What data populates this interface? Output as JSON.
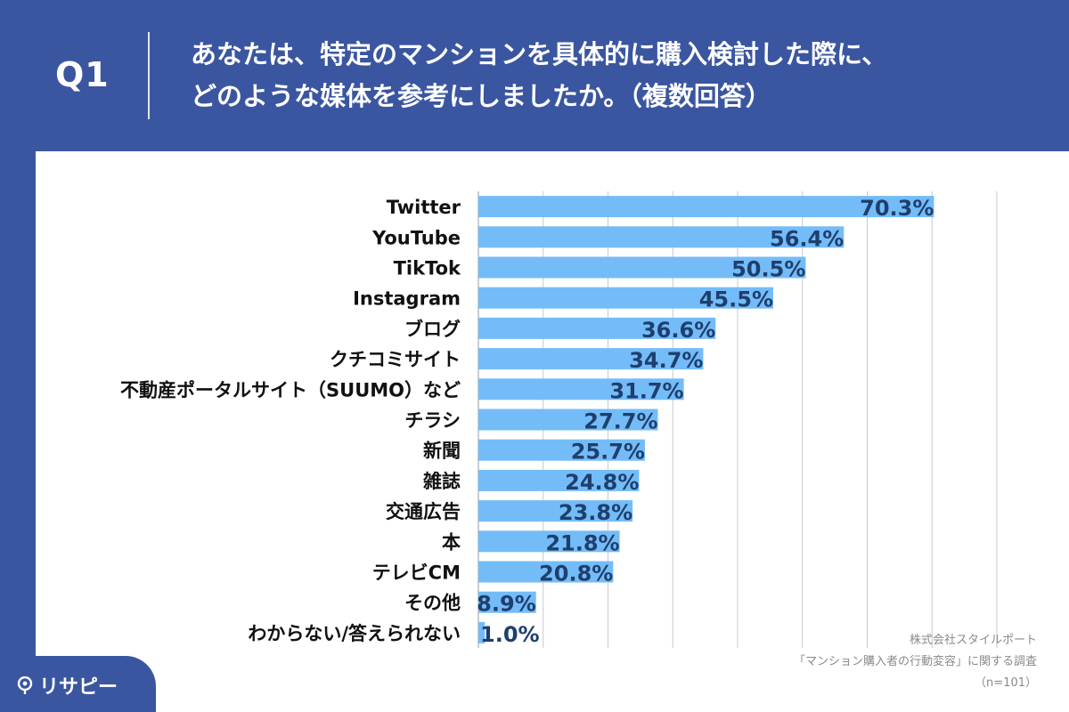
{
  "header": {
    "q_label": "Q1",
    "title_line1": "あなたは、特定のマンションを具体的に購入検討した際に、",
    "title_line2": "どのような媒体を参考にしましたか。（複数回答）"
  },
  "source": {
    "company": "株式会社スタイルポート",
    "survey": "「マンション購入者の行動変容」に関する調査",
    "sample": "（n=101）"
  },
  "logo": {
    "text": "リサピー"
  },
  "colors": {
    "header_bg": "#3b56a0",
    "bar": "#74bcf8",
    "value_text": "#1e3f6e"
  },
  "chart_data": {
    "type": "bar",
    "orientation": "horizontal",
    "categories": [
      "Twitter",
      "YouTube",
      "TikTok",
      "Instagram",
      "ブログ",
      "クチコミサイト",
      "不動産ポータルサイト（SUUMO）など",
      "チラシ",
      "新聞",
      "雑誌",
      "交通広告",
      "本",
      "テレビCM",
      "その他",
      "わからない/答えられない"
    ],
    "values": [
      70.3,
      56.4,
      50.5,
      45.5,
      36.6,
      34.7,
      31.7,
      27.7,
      25.7,
      24.8,
      23.8,
      21.8,
      20.8,
      8.9,
      1.0
    ],
    "value_labels": [
      "70.3%",
      "56.4%",
      "50.5%",
      "45.5%",
      "36.6%",
      "34.7%",
      "31.7%",
      "27.7%",
      "25.7%",
      "24.8%",
      "23.8%",
      "21.8%",
      "20.8%",
      "8.9%",
      "1.0%"
    ],
    "xlim": [
      0,
      80
    ],
    "grid": true
  }
}
